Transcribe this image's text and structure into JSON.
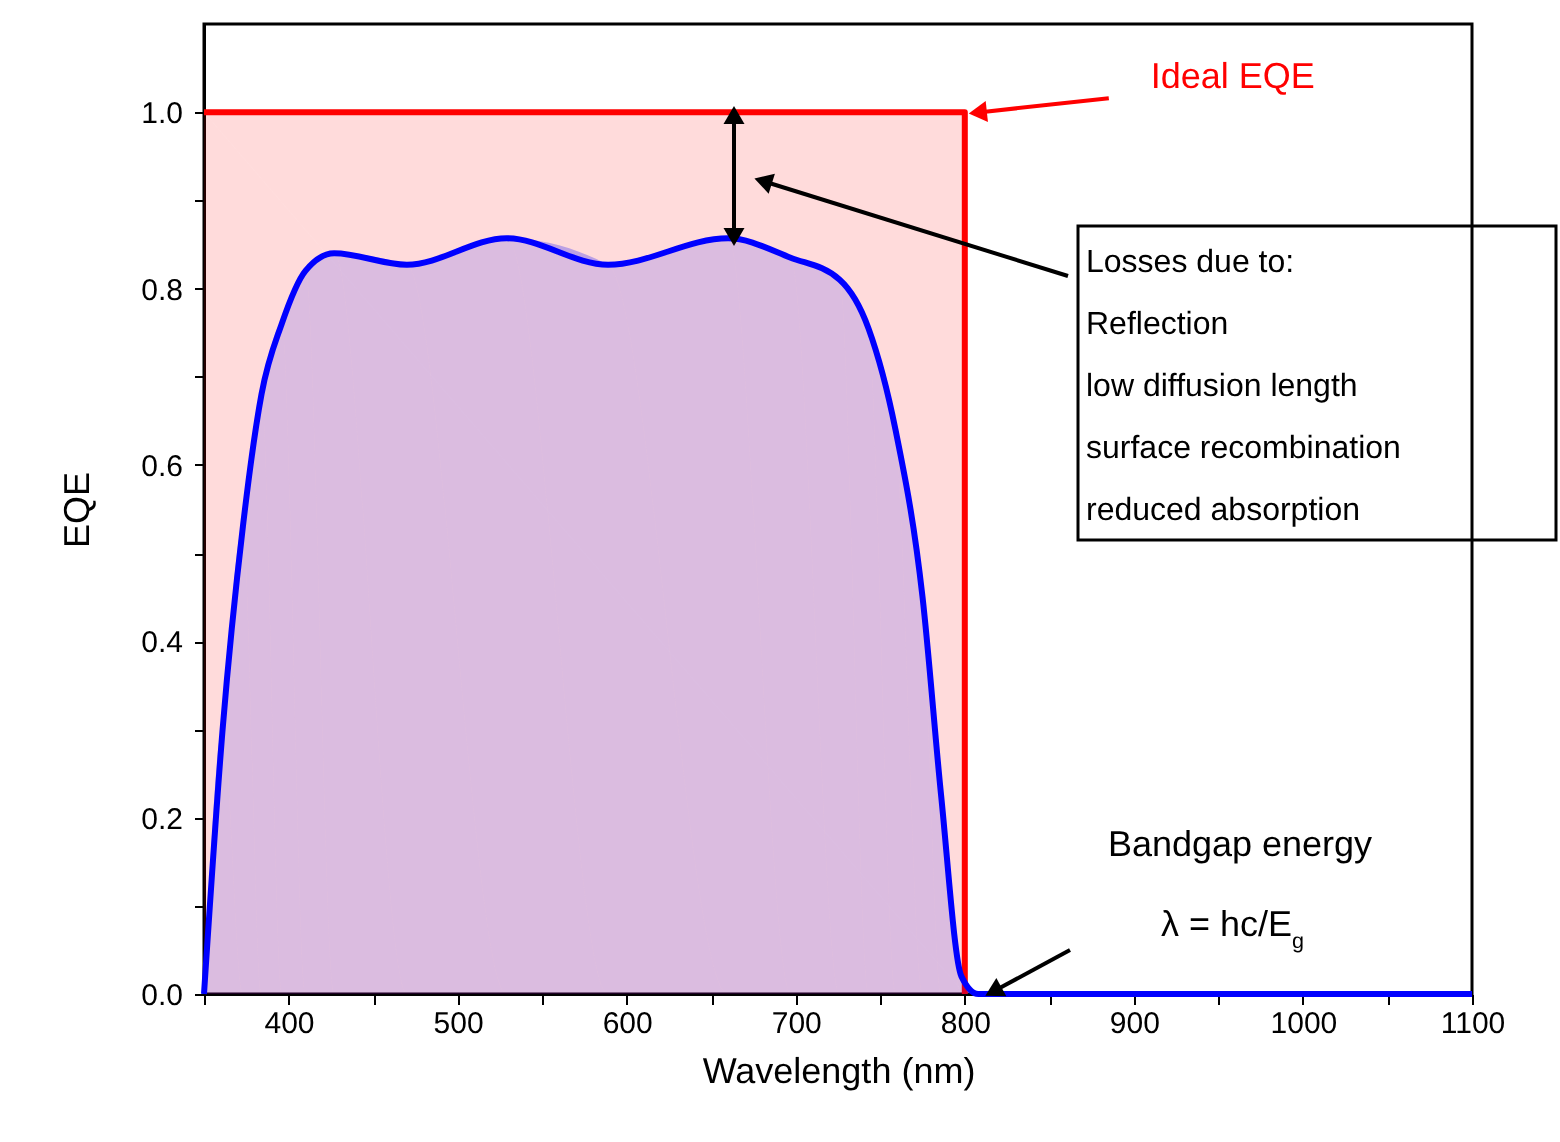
{
  "chart_data": {
    "type": "area",
    "xlabel": "Wavelength (nm)",
    "ylabel": "EQE",
    "xlim": [
      350,
      1100
    ],
    "ylim": [
      0,
      1.1
    ],
    "xticks": [
      {
        "value": 350,
        "label": null
      },
      400,
      {
        "value": 450,
        "label": null
      },
      500,
      {
        "value": 550,
        "label": null
      },
      600,
      {
        "value": 650,
        "label": null
      },
      700,
      {
        "value": 750,
        "label": null
      },
      800,
      {
        "value": 850,
        "label": null
      },
      900,
      {
        "value": 950,
        "label": null
      },
      1000,
      {
        "value": 1050,
        "label": null
      },
      1100
    ],
    "yticks": [
      {
        "value": 0,
        "label": "0.0"
      },
      {
        "value": 0.1,
        "label": null
      },
      {
        "value": 0.2,
        "label": "0.2"
      },
      {
        "value": 0.3,
        "label": null
      },
      {
        "value": 0.4,
        "label": "0.4"
      },
      {
        "value": 0.5,
        "label": null
      },
      {
        "value": 0.6,
        "label": "0.6"
      },
      {
        "value": 0.7,
        "label": null
      },
      {
        "value": 0.8,
        "label": "0.8"
      },
      {
        "value": 0.9,
        "label": null
      },
      {
        "value": 1,
        "label": "1.0"
      }
    ],
    "series": [
      {
        "color": "#ff0000",
        "x": [
          350,
          800,
          800
        ],
        "values": [
          1,
          1,
          0
        ]
      },
      {
        "color": "#0000ff",
        "x": [
          350,
          361,
          373,
          384,
          396,
          410,
          427,
          470,
          529,
          589,
          660,
          697,
          726,
          743,
          759,
          775,
          786,
          798,
          808,
          1100
        ],
        "values": [
          0,
          0.3,
          0.53,
          0.68,
          0.76,
          0.82,
          0.84,
          0.827,
          0.857,
          0.827,
          0.857,
          0.835,
          0.81,
          0.755,
          0.64,
          0.45,
          0.225,
          0.02,
          0,
          0
        ]
      }
    ],
    "annotations": [
      {
        "text": "Ideal EQE",
        "x": 800,
        "y": 1
      },
      "Losses due to:\nReflection\nlow diffusion length\nsurface recombination\nreduced absorption",
      "Bandgap energy",
      "λ = hc/E$_{g}$"
    ],
    "grid": false
  }
}
